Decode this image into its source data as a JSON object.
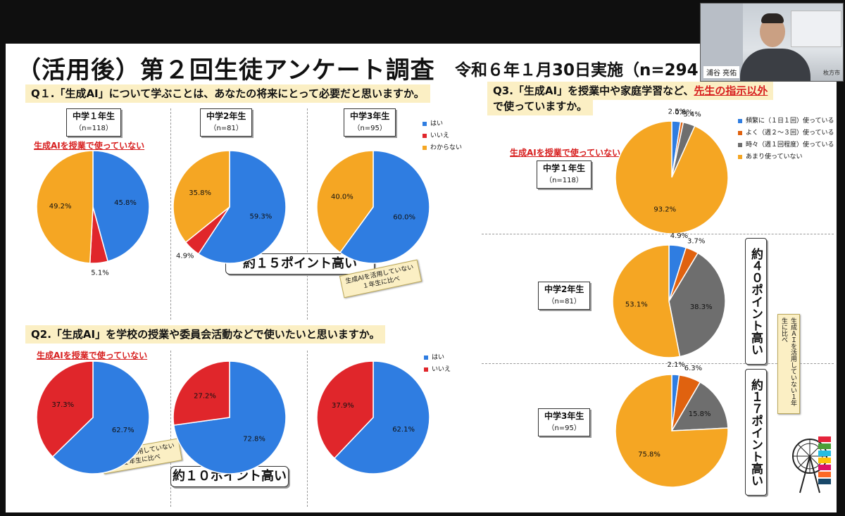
{
  "title": "（活用後）第２回生徒アンケート調査",
  "subtitle": "令和６年１月30日実施（n=294",
  "speaker_name": "浦谷 亮佑",
  "speaker_logo": "枚方市",
  "q1": {
    "question": "Q１.「生成AI」について学ぶことは、あなたの将来にとって必要だと思いますか。",
    "legend": [
      "はい",
      "いいえ",
      "わからない"
    ],
    "red_note": "生成AIを授業で使っていない",
    "callout": "約１５ポイント高い",
    "sticky_line1": "生成AIを活用していない",
    "sticky_line2": "１年生に比べ"
  },
  "q2": {
    "question": "Q2.「生成AI」を学校の授業や委員会活動などで使いたいと思いますか。",
    "legend": [
      "はい",
      "いいえ"
    ],
    "red_note": "生成AIを授業で使っていない",
    "callout": "約１０ポイント高い",
    "sticky_line1": "生成AIを活用していない",
    "sticky_line2": "１年生に比べ"
  },
  "q3": {
    "question_line1_a": "Q3.「生成AI」を授業中や家庭学習など、",
    "question_line1_b": "先生の指示以外",
    "question_line2": "で使っていますか。",
    "legend": [
      "頻繁に（１日１回）使っている",
      "よく（週２～３回）使っている",
      "時々（週１回程度）使っている",
      "あまり使っていない"
    ],
    "red_note": "生成AIを授業で使っていない",
    "callout_g2": "約４０ポイント高い",
    "callout_g3": "約１７ポイント高い",
    "sticky": "生成ＡＩを活用していない１年生に比べ"
  },
  "groups": [
    {
      "name": "中学１年生",
      "n": "（n=118）"
    },
    {
      "name": "中学2年生",
      "n": "（n=81）"
    },
    {
      "name": "中学3年生",
      "n": "（n=95）"
    }
  ],
  "colors": {
    "blue": "#2f7de1",
    "red": "#e0262b",
    "orange": "#f5a623",
    "gray": "#6e6e6e"
  },
  "chart_data": [
    {
      "type": "pie",
      "id": "q1-g1",
      "categories": [
        "はい",
        "いいえ",
        "わからない"
      ],
      "values": [
        45.8,
        5.1,
        49.2
      ],
      "labels": [
        "45.8%",
        "5.1%",
        "49.2%"
      ]
    },
    {
      "type": "pie",
      "id": "q1-g2",
      "categories": [
        "はい",
        "いいえ",
        "わからない"
      ],
      "values": [
        59.3,
        4.9,
        35.8
      ],
      "labels": [
        "59.3%",
        "4.9%",
        "35.8%"
      ]
    },
    {
      "type": "pie",
      "id": "q1-g3",
      "categories": [
        "はい",
        "いいえ",
        "わからない"
      ],
      "values": [
        60.0,
        0,
        40.0
      ],
      "labels": [
        "60.0%",
        "",
        "40.0%"
      ]
    },
    {
      "type": "pie",
      "id": "q2-g1",
      "categories": [
        "はい",
        "いいえ"
      ],
      "values": [
        62.7,
        37.3
      ],
      "labels": [
        "62.7%",
        "37.3%"
      ]
    },
    {
      "type": "pie",
      "id": "q2-g2",
      "categories": [
        "はい",
        "いいえ"
      ],
      "values": [
        72.8,
        27.2
      ],
      "labels": [
        "72.8%",
        "27.2%"
      ]
    },
    {
      "type": "pie",
      "id": "q2-g3",
      "categories": [
        "はい",
        "いいえ"
      ],
      "values": [
        62.1,
        37.9
      ],
      "labels": [
        "62.1%",
        "37.9%"
      ]
    },
    {
      "type": "pie",
      "id": "q3-g1",
      "categories": [
        "頻繁に（１日１回）使っている",
        "よく（週２～３回）使っている",
        "時々（週１回程度）使っている",
        "あまり使っていない"
      ],
      "values": [
        2.5,
        0.8,
        3.4,
        93.2
      ],
      "labels": [
        "2.5%",
        "0.8%",
        "3.4%",
        "93.2%"
      ]
    },
    {
      "type": "pie",
      "id": "q3-g2",
      "categories": [
        "頻繁に（１日１回）使っている",
        "よく（週２～３回）使っている",
        "時々（週１回程度）使っている",
        "あまり使っていない"
      ],
      "values": [
        4.9,
        3.7,
        38.3,
        53.1
      ],
      "labels": [
        "4.9%",
        "3.7%",
        "38.3%",
        "53.1%"
      ]
    },
    {
      "type": "pie",
      "id": "q3-g3",
      "categories": [
        "頻繁に（１日１回）使っている",
        "よく（週２～３回）使っている",
        "時々（週１回程度）使っている",
        "あまり使っていない"
      ],
      "values": [
        2.1,
        6.3,
        15.8,
        75.8
      ],
      "labels": [
        "2.1%",
        "6.3%",
        "15.8%",
        "75.8%"
      ]
    }
  ]
}
